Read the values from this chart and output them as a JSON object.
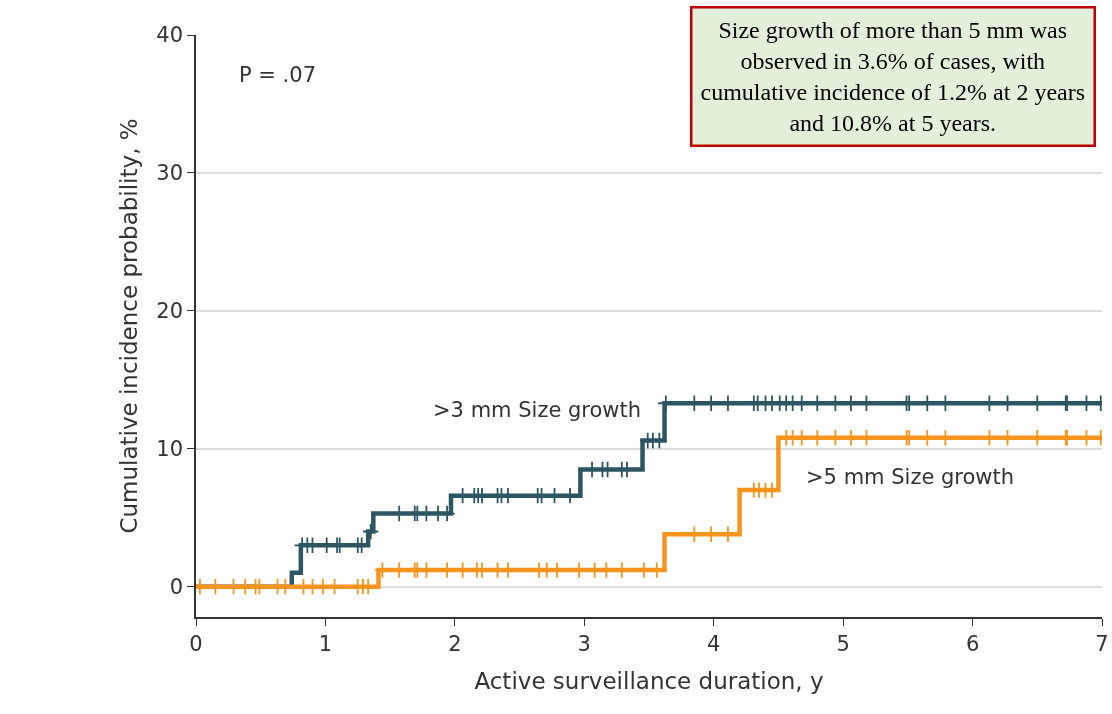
{
  "chart_data": {
    "type": "step",
    "xlabel": "Active surveillance duration, y",
    "ylabel": "Cumulative incidence probability, %",
    "xlim": [
      0,
      7
    ],
    "xticks": [
      0,
      1,
      2,
      3,
      4,
      5,
      6,
      7
    ],
    "ylim": [
      -2.2,
      40
    ],
    "yticks": [
      0,
      10,
      20,
      30,
      40
    ],
    "grid": "y",
    "legend": false,
    "line_style": "solid",
    "series": [
      {
        "name": ">3 mm Size growth",
        "color": "#2d5663",
        "x": [
          0,
          0.74,
          0.81,
          1.33,
          1.37,
          1.97,
          2.97,
          3.45,
          3.62,
          7.0
        ],
        "values": [
          0,
          1.0,
          3.0,
          4.0,
          5.3,
          6.6,
          8.5,
          10.6,
          13.3,
          13.3
        ]
      },
      {
        "name": ">5 mm Size growth",
        "color": "#f7941d",
        "x": [
          0,
          1.41,
          3.62,
          4.2,
          4.5,
          7.0
        ],
        "values": [
          0,
          1.2,
          3.8,
          7.0,
          10.8,
          10.8
        ]
      },
      {
        "type": "scatter",
        "marker": "cross",
        "color": "#2d5663",
        "x": [
          0.82,
          0.86,
          0.9,
          1.01,
          1.09,
          1.11,
          1.25,
          1.28,
          1.35,
          1.57,
          1.69,
          1.71,
          1.78,
          1.87,
          1.94,
          2.06,
          2.15,
          2.18,
          2.21,
          2.33,
          2.36,
          2.41,
          2.64,
          2.67,
          2.77,
          2.89,
          3.06,
          3.14,
          3.18,
          3.29,
          3.33,
          3.49,
          3.53,
          3.58,
          3.63,
          3.85,
          3.98,
          4.11,
          4.31,
          4.34,
          4.4,
          4.45,
          4.51,
          4.56,
          4.61,
          4.68,
          4.8,
          4.94,
          5.06,
          5.18,
          5.49,
          5.51,
          5.65,
          5.79,
          6.13,
          6.27,
          6.5,
          6.72,
          6.73,
          6.88,
          6.99
        ],
        "values": [
          3.0,
          3.0,
          3.0,
          3.0,
          3.0,
          3.0,
          3.0,
          3.0,
          4.0,
          5.3,
          5.3,
          5.3,
          5.3,
          5.3,
          5.3,
          6.6,
          6.6,
          6.6,
          6.6,
          6.6,
          6.6,
          6.6,
          6.6,
          6.6,
          6.6,
          6.6,
          8.5,
          8.5,
          8.5,
          8.5,
          8.5,
          10.6,
          10.6,
          10.6,
          13.3,
          13.3,
          13.3,
          13.3,
          13.3,
          13.3,
          13.3,
          13.3,
          13.3,
          13.3,
          13.3,
          13.3,
          13.3,
          13.3,
          13.3,
          13.3,
          13.3,
          13.3,
          13.3,
          13.3,
          13.3,
          13.3,
          13.3,
          13.3,
          13.3,
          13.3,
          13.3
        ]
      },
      {
        "type": "scatter",
        "marker": "cross",
        "color": "#f7941d",
        "x": [
          0.03,
          0.15,
          0.29,
          0.38,
          0.46,
          0.49,
          0.63,
          0.69,
          0.83,
          0.9,
          0.98,
          1.07,
          1.25,
          1.29,
          1.33,
          1.44,
          1.57,
          1.69,
          1.71,
          1.78,
          1.94,
          2.06,
          2.17,
          2.21,
          2.33,
          2.41,
          2.65,
          2.71,
          2.79,
          2.96,
          3.08,
          3.17,
          3.29,
          3.46,
          3.56,
          3.85,
          3.98,
          4.11,
          4.31,
          4.35,
          4.4,
          4.45,
          4.56,
          4.61,
          4.68,
          4.8,
          4.94,
          5.06,
          5.18,
          5.49,
          5.51,
          5.65,
          5.79,
          6.13,
          6.27,
          6.5,
          6.72,
          6.73,
          6.88,
          6.99
        ],
        "values": [
          0,
          0,
          0,
          0,
          0,
          0,
          0,
          0,
          0,
          0,
          0,
          0,
          0,
          0,
          0,
          1.2,
          1.2,
          1.2,
          1.2,
          1.2,
          1.2,
          1.2,
          1.2,
          1.2,
          1.2,
          1.2,
          1.2,
          1.2,
          1.2,
          1.2,
          1.2,
          1.2,
          1.2,
          1.2,
          1.2,
          3.8,
          3.8,
          3.8,
          7.0,
          7.0,
          7.0,
          7.0,
          10.8,
          10.8,
          10.8,
          10.8,
          10.8,
          10.8,
          10.8,
          10.8,
          10.8,
          10.8,
          10.8,
          10.8,
          10.8,
          10.8,
          10.8,
          10.8,
          10.8,
          10.8
        ]
      }
    ],
    "annotations": [
      "P = .07",
      "Size growth of more than 5 mm was observed in 3.6% of cases, with cumulative incidence of 1.2% at 2 years and 10.8% at 5 years."
    ]
  }
}
